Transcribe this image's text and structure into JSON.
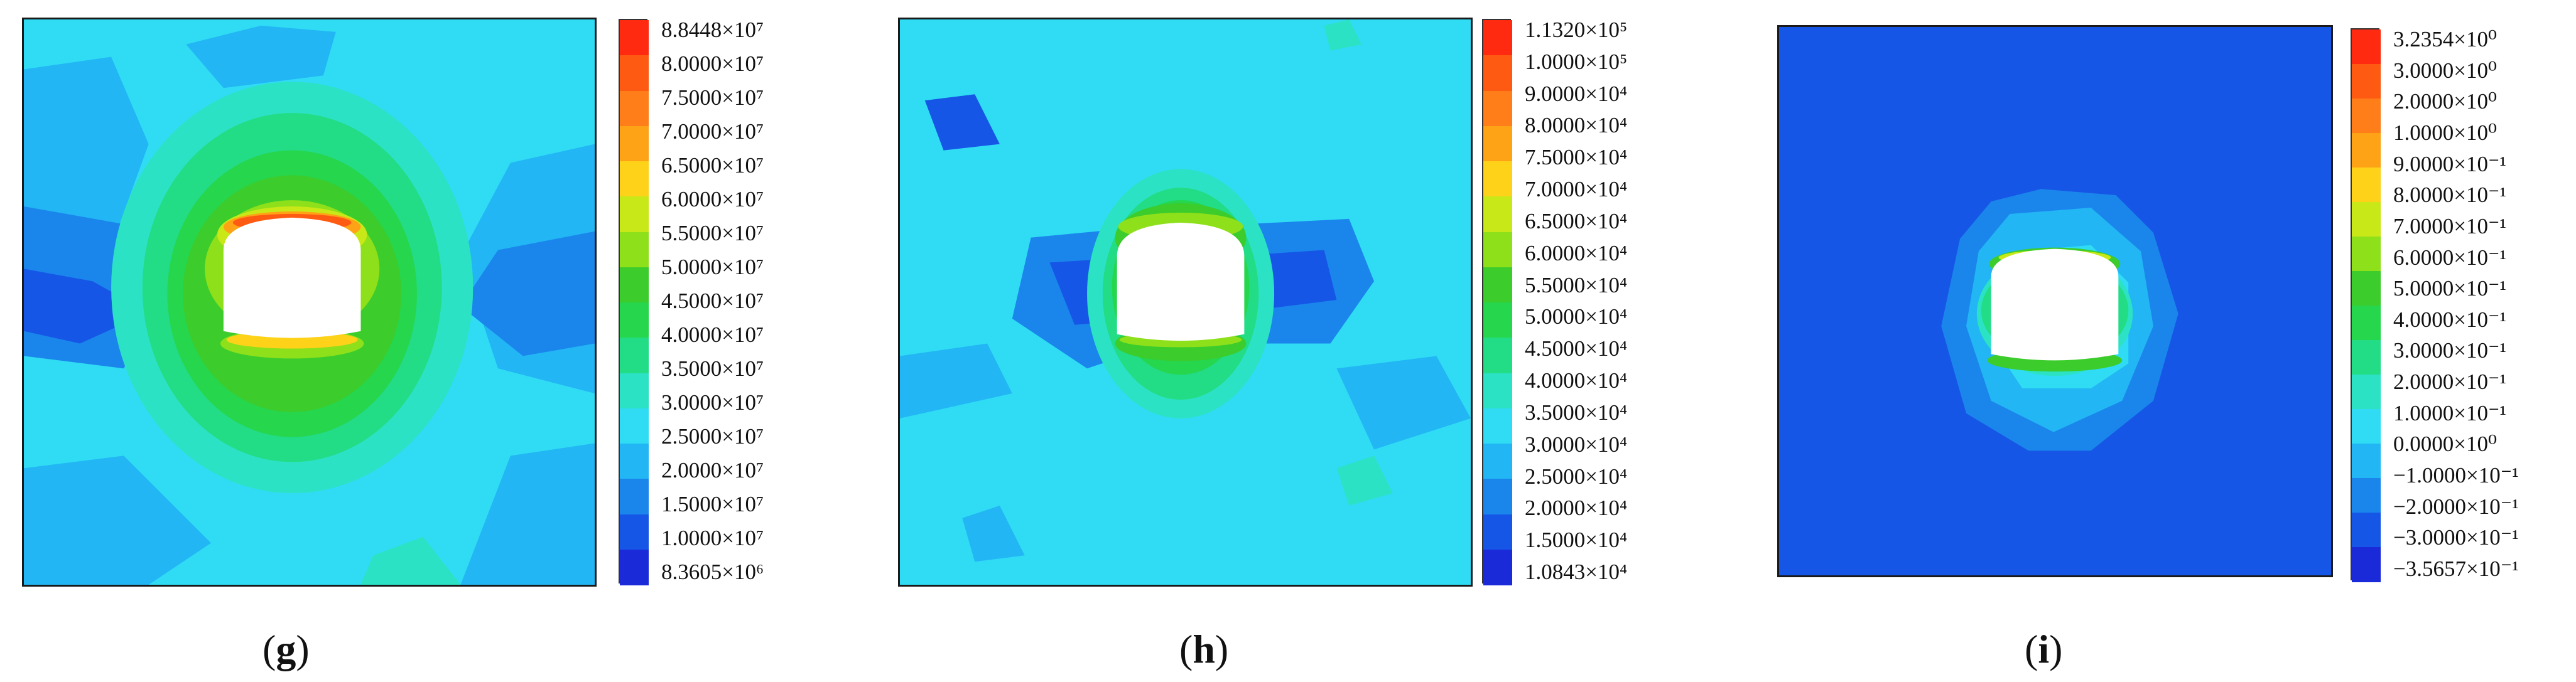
{
  "panels": [
    {
      "id": "g",
      "caption": {
        "open": "(",
        "letter": "g",
        "close": ")"
      },
      "colors": [
        "#ff2a10",
        "#ff5a12",
        "#ff7e1a",
        "#ffa316",
        "#ffd21a",
        "#c8e818",
        "#8ee01a",
        "#3ccc2c",
        "#26d64c",
        "#22dc86",
        "#2be2c4",
        "#2fdcf4",
        "#22b6f4",
        "#1a86ec",
        "#1656e6",
        "#1a2ad8"
      ],
      "labels": [
        "8.8448×10⁷",
        "8.0000×10⁷",
        "7.5000×10⁷",
        "7.0000×10⁷",
        "6.5000×10⁷",
        "6.0000×10⁷",
        "5.5000×10⁷",
        "5.0000×10⁷",
        "4.5000×10⁷",
        "4.0000×10⁷",
        "3.5000×10⁷",
        "3.0000×10⁷",
        "2.5000×10⁷",
        "2.0000×10⁷",
        "1.5000×10⁷",
        "1.0000×10⁷",
        "8.3605×10⁶"
      ]
    },
    {
      "id": "h",
      "caption": {
        "open": "(",
        "letter": "h",
        "close": ")"
      },
      "colors": [
        "#ff2a10",
        "#ff5a12",
        "#ff7e1a",
        "#ffa316",
        "#ffd21a",
        "#c8e818",
        "#8ee01a",
        "#3ccc2c",
        "#26d64c",
        "#22dc86",
        "#2be2c4",
        "#2fdcf4",
        "#22b6f4",
        "#1a86ec",
        "#1656e6",
        "#1a2ad8"
      ],
      "labels": [
        "1.1320×10⁵",
        "1.0000×10⁵",
        "9.0000×10⁴",
        "8.0000×10⁴",
        "7.5000×10⁴",
        "7.0000×10⁴",
        "6.5000×10⁴",
        "6.0000×10⁴",
        "5.5000×10⁴",
        "5.0000×10⁴",
        "4.5000×10⁴",
        "4.0000×10⁴",
        "3.5000×10⁴",
        "3.0000×10⁴",
        "2.5000×10⁴",
        "2.0000×10⁴",
        "1.5000×10⁴",
        "1.0843×10⁴"
      ]
    },
    {
      "id": "i",
      "caption": {
        "open": "(",
        "letter": "i",
        "close": ")"
      },
      "colors": [
        "#ff2a10",
        "#ff5a12",
        "#ff7e1a",
        "#ffa316",
        "#ffd21a",
        "#c8e818",
        "#8ee01a",
        "#3ccc2c",
        "#26d64c",
        "#22dc86",
        "#2be2c4",
        "#2fdcf4",
        "#22b6f4",
        "#1a86ec",
        "#1656e6",
        "#1a2ad8"
      ],
      "labels": [
        "3.2354×10⁰",
        "3.0000×10⁰",
        "2.0000×10⁰",
        "1.0000×10⁰",
        "9.0000×10⁻¹",
        "8.0000×10⁻¹",
        "7.0000×10⁻¹",
        "6.0000×10⁻¹",
        "5.0000×10⁻¹",
        "4.0000×10⁻¹",
        "3.0000×10⁻¹",
        "2.0000×10⁻¹",
        "1.0000×10⁻¹",
        "0.0000×10⁰",
        "−1.0000×10⁻¹",
        "−2.0000×10⁻¹",
        "−3.0000×10⁻¹",
        "−3.5657×10⁻¹"
      ]
    }
  ]
}
